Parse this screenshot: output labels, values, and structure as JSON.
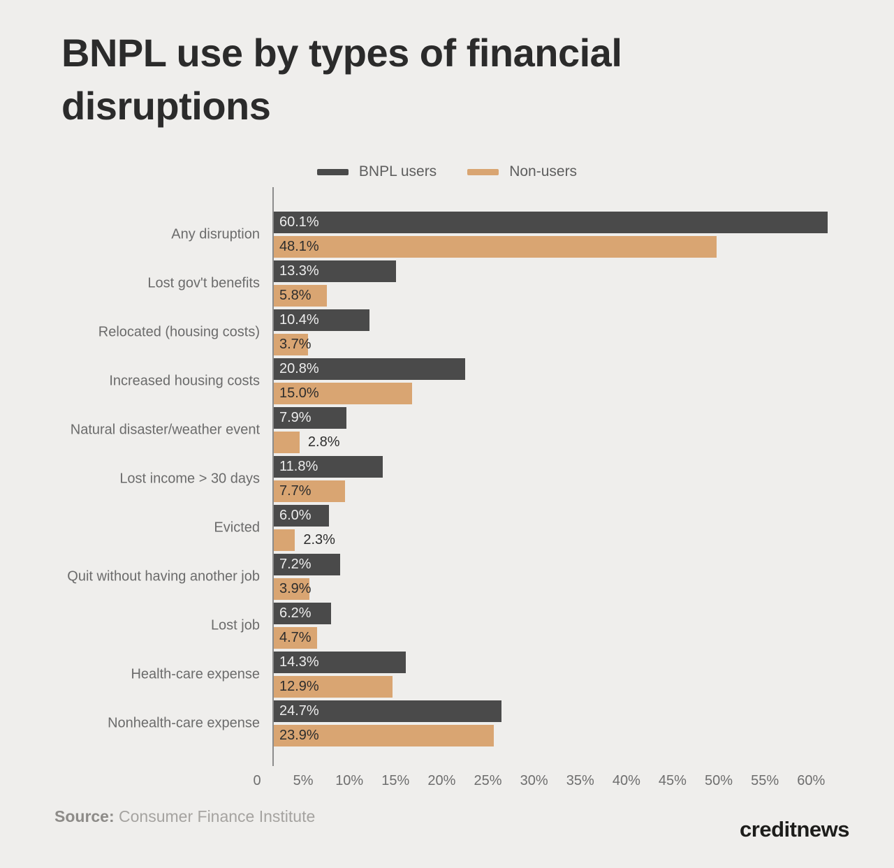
{
  "page": {
    "title": "BNPL use by types of financial disruptions",
    "source_label": "Source:",
    "source_name": "Consumer Finance Institute",
    "brand": "creditnews"
  },
  "colors": {
    "background": "#efeeec",
    "title_text": "#2b2b2b",
    "category_text": "#6b6b6b",
    "axis_line": "#8c8c8c",
    "tick_text": "#6e6e6e",
    "value_on_dark": "#ededed",
    "value_on_tan": "#2d2d2d",
    "value_outside": "#2d2d2d",
    "source_text": "#a5a3a0",
    "brand_text": "#1d1d1b"
  },
  "chart_data": {
    "type": "bar",
    "orientation": "horizontal",
    "title": "BNPL use by types of financial disruptions",
    "categories": [
      "Any disruption",
      "Lost gov't benefits",
      "Relocated (housing costs)",
      "Increased housing costs",
      "Natural disaster/weather event",
      "Lost income > 30 days",
      "Evicted",
      "Quit without having another job",
      "Lost job",
      "Health-care expense",
      "Nonhealth-care expense"
    ],
    "series": [
      {
        "name": "BNPL users",
        "color": "#4a4a4a",
        "values": [
          60.1,
          13.3,
          10.4,
          20.8,
          7.9,
          11.8,
          6.0,
          7.2,
          6.2,
          14.3,
          24.7
        ]
      },
      {
        "name": "Non-users",
        "color": "#d9a572",
        "values": [
          48.1,
          5.8,
          3.7,
          15.0,
          2.8,
          7.7,
          2.3,
          3.9,
          4.7,
          12.9,
          23.9
        ]
      }
    ],
    "value_label_suffix": "%",
    "value_label_decimals": 1,
    "outside_label_below": 3.5,
    "x_ticks": [
      0,
      5,
      10,
      15,
      20,
      25,
      30,
      35,
      40,
      45,
      50,
      55,
      60
    ],
    "x_tick_labels": [
      "0",
      "5%",
      "10%",
      "15%",
      "20%",
      "25%",
      "30%",
      "35%",
      "40%",
      "45%",
      "50%",
      "55%",
      "60%"
    ],
    "xlim": [
      0,
      62.4
    ],
    "grid": false,
    "legend_position": "top-center"
  }
}
